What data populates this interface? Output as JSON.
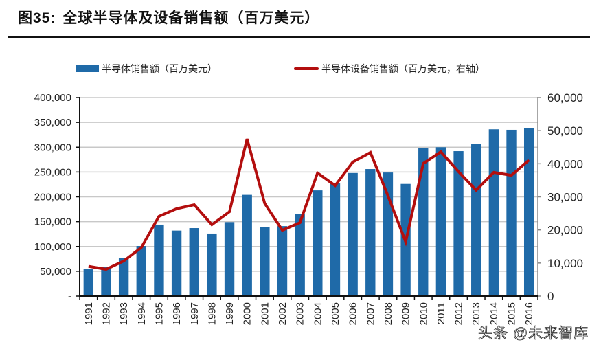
{
  "figure": {
    "number": "图35:",
    "title": "全球半导体及设备销售额（百万美元）"
  },
  "watermark": "头条 @未来智库",
  "colors": {
    "bar": "#1f6aa8",
    "line": "#b30e0e",
    "grid": "#c8c8c8",
    "axis": "#111111"
  },
  "chart_data": {
    "type": "bar+line",
    "title": "全球半导体及设备销售额（百万美元）",
    "categories": [
      "1991",
      "1992",
      "1993",
      "1994",
      "1995",
      "1996",
      "1997",
      "1998",
      "1999",
      "2000",
      "2001",
      "2002",
      "2003",
      "2004",
      "2005",
      "2006",
      "2007",
      "2008",
      "2009",
      "2010",
      "2011",
      "2012",
      "2013",
      "2014",
      "2015",
      "2016"
    ],
    "series": [
      {
        "name": "半导体销售额（百万美元）",
        "type": "bar",
        "axis": "left",
        "values": [
          54600,
          59000,
          77000,
          101000,
          144000,
          132000,
          137000,
          126000,
          149000,
          204000,
          139000,
          141000,
          166000,
          213000,
          227000,
          248000,
          256000,
          249000,
          226000,
          298000,
          300000,
          292000,
          306000,
          336000,
          335000,
          339000
        ]
      },
      {
        "name": "半导体设备销售额（百万美元，右轴）",
        "type": "line",
        "axis": "right",
        "values": [
          9000,
          8100,
          10600,
          14700,
          24100,
          26400,
          27600,
          21600,
          25500,
          47500,
          28000,
          19900,
          22200,
          37200,
          33400,
          40500,
          43400,
          30300,
          16400,
          40100,
          43600,
          37600,
          32000,
          37400,
          36500,
          41100
        ]
      }
    ],
    "left_axis": {
      "ylim": [
        0,
        400000
      ],
      "ticks": [
        0,
        50000,
        100000,
        150000,
        200000,
        250000,
        300000,
        350000,
        400000
      ],
      "tick_labels": [
        "-",
        "50,000",
        "100,000",
        "150,000",
        "200,000",
        "250,000",
        "300,000",
        "350,000",
        "400,000"
      ]
    },
    "right_axis": {
      "ylim": [
        0,
        60000
      ],
      "ticks": [
        0,
        10000,
        20000,
        30000,
        40000,
        50000,
        60000
      ],
      "tick_labels": [
        "0",
        "10,000",
        "20,000",
        "30,000",
        "40,000",
        "50,000",
        "60,000"
      ]
    },
    "grid": true,
    "legend_position": "top"
  }
}
